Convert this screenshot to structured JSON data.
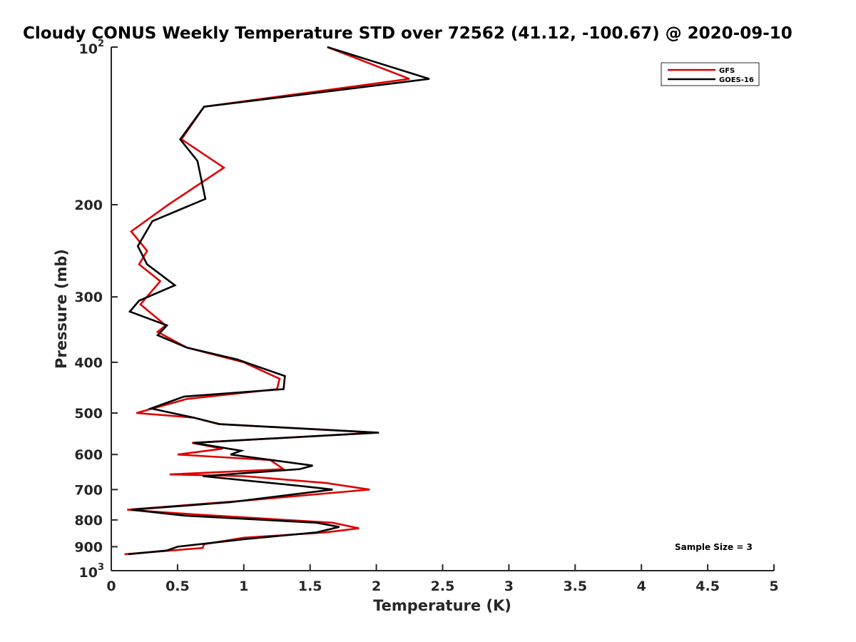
{
  "chart_data": {
    "type": "line",
    "title": "Cloudy CONUS Weekly Temperature STD over 72562 (41.12, -100.67) @ 2020-09-10",
    "xlabel": "Temperature (K)",
    "ylabel": "Pressure (mb)",
    "xlim": [
      0,
      5
    ],
    "ylim": [
      100,
      1000
    ],
    "y_scale": "log",
    "y_reversed": true,
    "grid": false,
    "legend_position": "top-right",
    "x_ticks": [
      "0",
      "0.5",
      "1",
      "1.5",
      "2",
      "2.5",
      "3",
      "3.5",
      "4",
      "4.5",
      "5"
    ],
    "x_tick_values": [
      0,
      0.5,
      1,
      1.5,
      2,
      2.5,
      3,
      3.5,
      4,
      4.5,
      5
    ],
    "y_ticks": [
      {
        "value": 100,
        "base": "10",
        "exp": "2"
      },
      {
        "value": 200,
        "label": "200"
      },
      {
        "value": 300,
        "label": "300"
      },
      {
        "value": 400,
        "label": "400"
      },
      {
        "value": 500,
        "label": "500"
      },
      {
        "value": 600,
        "label": "600"
      },
      {
        "value": 700,
        "label": "700"
      },
      {
        "value": 800,
        "label": "800"
      },
      {
        "value": 900,
        "label": "900"
      },
      {
        "value": 1000,
        "base": "10",
        "exp": "3"
      }
    ],
    "annotation": "Sample Size = 3",
    "series": [
      {
        "name": "GFS",
        "color": "#dd0000",
        "points": [
          [
            1.63,
            100
          ],
          [
            2.25,
            115
          ],
          [
            0.7,
            130
          ],
          [
            0.53,
            150
          ],
          [
            0.85,
            170
          ],
          [
            0.43,
            200
          ],
          [
            0.15,
            225
          ],
          [
            0.27,
            245
          ],
          [
            0.21,
            260
          ],
          [
            0.37,
            280
          ],
          [
            0.22,
            310
          ],
          [
            0.41,
            340
          ],
          [
            0.35,
            350
          ],
          [
            0.57,
            375
          ],
          [
            1.0,
            400
          ],
          [
            1.27,
            430
          ],
          [
            1.25,
            450
          ],
          [
            0.57,
            470
          ],
          [
            0.19,
            500
          ],
          [
            0.62,
            510
          ],
          [
            0.81,
            525
          ],
          [
            2.0,
            545
          ],
          [
            0.61,
            570
          ],
          [
            0.84,
            585
          ],
          [
            0.5,
            600
          ],
          [
            1.2,
            615
          ],
          [
            1.3,
            640
          ],
          [
            0.44,
            655
          ],
          [
            1.0,
            660
          ],
          [
            1.62,
            680
          ],
          [
            1.95,
            700
          ],
          [
            1.0,
            735
          ],
          [
            0.12,
            765
          ],
          [
            0.6,
            780
          ],
          [
            1.67,
            810
          ],
          [
            1.87,
            830
          ],
          [
            1.62,
            845
          ],
          [
            1.0,
            865
          ],
          [
            0.7,
            890
          ],
          [
            0.69,
            905
          ],
          [
            0.1,
            930
          ]
        ]
      },
      {
        "name": "GOES-16",
        "color": "#000000",
        "points": [
          [
            1.63,
            100
          ],
          [
            2.4,
            115
          ],
          [
            0.7,
            130
          ],
          [
            0.52,
            150
          ],
          [
            0.65,
            165
          ],
          [
            0.71,
            195
          ],
          [
            0.31,
            215
          ],
          [
            0.2,
            240
          ],
          [
            0.27,
            260
          ],
          [
            0.48,
            285
          ],
          [
            0.21,
            305
          ],
          [
            0.14,
            320
          ],
          [
            0.42,
            340
          ],
          [
            0.35,
            355
          ],
          [
            0.57,
            375
          ],
          [
            0.95,
            395
          ],
          [
            1.31,
            425
          ],
          [
            1.3,
            450
          ],
          [
            0.55,
            465
          ],
          [
            0.3,
            490
          ],
          [
            0.62,
            510
          ],
          [
            0.82,
            525
          ],
          [
            2.02,
            545
          ],
          [
            0.62,
            570
          ],
          [
            0.98,
            590
          ],
          [
            0.9,
            600
          ],
          [
            1.52,
            630
          ],
          [
            1.42,
            640
          ],
          [
            0.69,
            660
          ],
          [
            1.45,
            690
          ],
          [
            1.67,
            700
          ],
          [
            0.9,
            740
          ],
          [
            0.15,
            765
          ],
          [
            0.55,
            785
          ],
          [
            1.55,
            810
          ],
          [
            1.72,
            825
          ],
          [
            1.55,
            845
          ],
          [
            1.02,
            870
          ],
          [
            0.5,
            900
          ],
          [
            0.42,
            915
          ],
          [
            0.13,
            930
          ]
        ]
      }
    ]
  }
}
